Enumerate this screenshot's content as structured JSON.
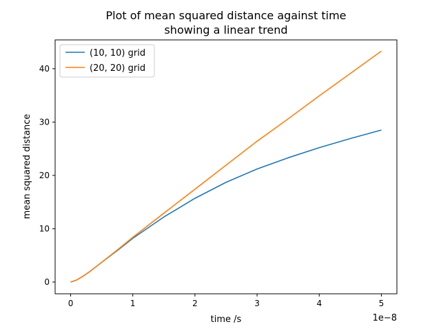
{
  "chart_data": {
    "type": "line",
    "title_lines": [
      "Plot of mean squared distance against time",
      "showing a linear trend"
    ],
    "xlabel": "time /s",
    "ylabel": "mean squared distance",
    "x_offset_text": "1e−8",
    "xlim": [
      -0.25,
      5.25
    ],
    "ylim": [
      -2.2,
      45.4
    ],
    "x_ticks": [
      0,
      1,
      2,
      3,
      4,
      5
    ],
    "x_tick_labels": [
      "0",
      "1",
      "2",
      "3",
      "4",
      "5"
    ],
    "y_ticks": [
      0,
      10,
      20,
      30,
      40
    ],
    "y_tick_labels": [
      "0",
      "10",
      "20",
      "30",
      "40"
    ],
    "grid": false,
    "legend_position": "upper-left",
    "series": [
      {
        "name": "(10, 10) grid",
        "color": "#1f77b4",
        "x": [
          0,
          0.1,
          0.2,
          0.3,
          0.5,
          0.75,
          1.0,
          1.5,
          2.0,
          2.5,
          3.0,
          3.5,
          4.0,
          4.5,
          5.0
        ],
        "y": [
          0,
          0.4,
          1.1,
          1.9,
          3.7,
          5.9,
          8.2,
          12.2,
          15.7,
          18.7,
          21.2,
          23.3,
          25.2,
          26.9,
          28.5
        ]
      },
      {
        "name": "(20, 20) grid",
        "color": "#ff7f0e",
        "x": [
          0,
          0.1,
          0.2,
          0.3,
          0.5,
          0.75,
          1.0,
          1.5,
          2.0,
          2.5,
          3.0,
          3.5,
          4.0,
          4.5,
          5.0
        ],
        "y": [
          0,
          0.4,
          1.1,
          1.9,
          3.7,
          6.0,
          8.4,
          12.9,
          17.4,
          21.9,
          26.4,
          30.6,
          34.9,
          39.1,
          43.3
        ]
      }
    ]
  }
}
